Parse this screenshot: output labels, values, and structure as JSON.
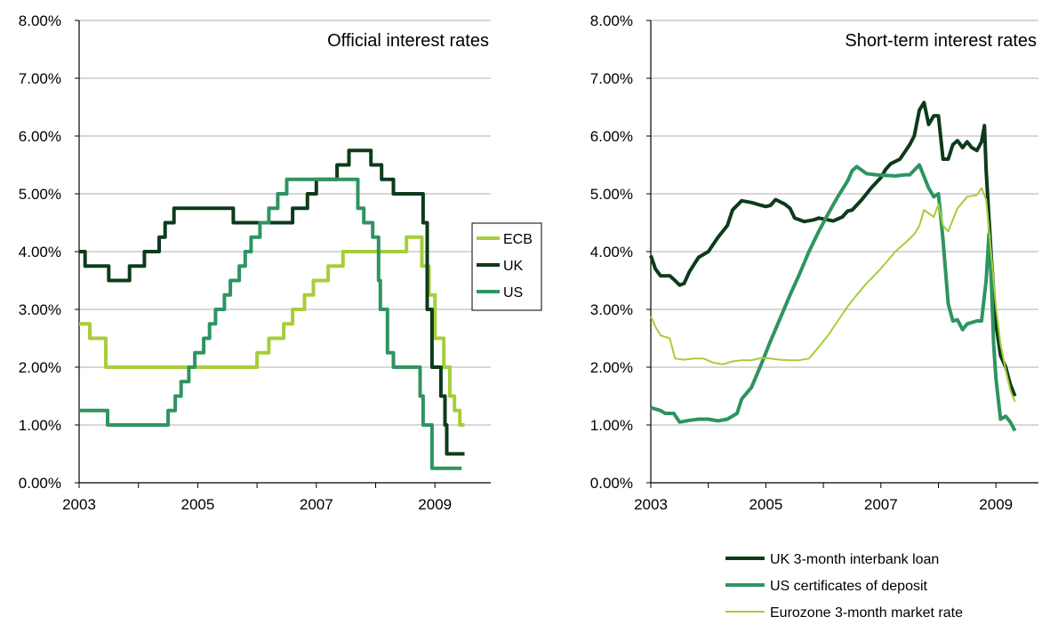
{
  "chart_data": [
    {
      "type": "line",
      "title": "Official interest rates",
      "ylim": [
        0,
        8
      ],
      "xlim": [
        2003,
        2010
      ],
      "x_ticks": [
        "2003",
        "2005",
        "2007",
        "2009"
      ],
      "y_ticks": [
        "0.00%",
        "1.00%",
        "2.00%",
        "3.00%",
        "4.00%",
        "5.00%",
        "6.00%",
        "7.00%",
        "8.00%"
      ],
      "grid": true,
      "legend_placement": "right",
      "series": [
        {
          "name": "ECB",
          "color": "#a6ce39",
          "step": true,
          "points": [
            [
              2003.0,
              2.75
            ],
            [
              2003.18,
              2.5
            ],
            [
              2003.45,
              2.0
            ],
            [
              2006.0,
              2.25
            ],
            [
              2006.2,
              2.5
            ],
            [
              2006.45,
              2.75
            ],
            [
              2006.6,
              3.0
            ],
            [
              2006.8,
              3.25
            ],
            [
              2006.95,
              3.5
            ],
            [
              2007.2,
              3.75
            ],
            [
              2007.45,
              4.0
            ],
            [
              2008.52,
              4.25
            ],
            [
              2008.78,
              3.75
            ],
            [
              2008.9,
              3.25
            ],
            [
              2009.0,
              2.5
            ],
            [
              2009.15,
              2.0
            ],
            [
              2009.25,
              1.5
            ],
            [
              2009.33,
              1.25
            ],
            [
              2009.42,
              1.0
            ],
            [
              2009.5,
              1.0
            ]
          ]
        },
        {
          "name": "UK",
          "color": "#0d3b1a",
          "step": true,
          "points": [
            [
              2003.0,
              4.0
            ],
            [
              2003.1,
              3.75
            ],
            [
              2003.5,
              3.5
            ],
            [
              2003.85,
              3.75
            ],
            [
              2004.1,
              4.0
            ],
            [
              2004.35,
              4.25
            ],
            [
              2004.45,
              4.5
            ],
            [
              2004.6,
              4.75
            ],
            [
              2005.6,
              4.5
            ],
            [
              2006.6,
              4.75
            ],
            [
              2006.85,
              5.0
            ],
            [
              2007.0,
              5.25
            ],
            [
              2007.35,
              5.5
            ],
            [
              2007.55,
              5.75
            ],
            [
              2007.92,
              5.5
            ],
            [
              2008.1,
              5.25
            ],
            [
              2008.3,
              5.0
            ],
            [
              2008.8,
              4.5
            ],
            [
              2008.87,
              3.0
            ],
            [
              2008.95,
              2.0
            ],
            [
              2009.1,
              1.5
            ],
            [
              2009.17,
              1.0
            ],
            [
              2009.2,
              0.5
            ],
            [
              2009.5,
              0.5
            ]
          ]
        },
        {
          "name": "US",
          "color": "#2e9460",
          "step": true,
          "points": [
            [
              2003.0,
              1.25
            ],
            [
              2003.48,
              1.0
            ],
            [
              2004.5,
              1.25
            ],
            [
              2004.62,
              1.5
            ],
            [
              2004.72,
              1.75
            ],
            [
              2004.85,
              2.0
            ],
            [
              2004.95,
              2.25
            ],
            [
              2005.1,
              2.5
            ],
            [
              2005.2,
              2.75
            ],
            [
              2005.3,
              3.0
            ],
            [
              2005.45,
              3.25
            ],
            [
              2005.55,
              3.5
            ],
            [
              2005.7,
              3.75
            ],
            [
              2005.8,
              4.0
            ],
            [
              2005.9,
              4.25
            ],
            [
              2006.05,
              4.5
            ],
            [
              2006.2,
              4.75
            ],
            [
              2006.35,
              5.0
            ],
            [
              2006.5,
              5.25
            ],
            [
              2007.7,
              4.75
            ],
            [
              2007.8,
              4.5
            ],
            [
              2007.95,
              4.25
            ],
            [
              2008.05,
              3.5
            ],
            [
              2008.08,
              3.0
            ],
            [
              2008.2,
              2.25
            ],
            [
              2008.3,
              2.0
            ],
            [
              2008.75,
              1.5
            ],
            [
              2008.8,
              1.0
            ],
            [
              2008.95,
              0.25
            ],
            [
              2009.45,
              0.25
            ]
          ]
        }
      ]
    },
    {
      "type": "line",
      "title": "Short-term interest rates",
      "ylim": [
        0,
        8
      ],
      "xlim": [
        2003,
        2010
      ],
      "x_ticks": [
        "2003",
        "2005",
        "2007",
        "2009"
      ],
      "y_ticks": [
        "0.00%",
        "1.00%",
        "2.00%",
        "3.00%",
        "4.00%",
        "5.00%",
        "6.00%",
        "7.00%",
        "8.00%"
      ],
      "grid": true,
      "legend_placement": "bottom-right",
      "series": [
        {
          "name": "UK 3-month interbank loan",
          "color": "#0d3b1a",
          "width": 4,
          "points": [
            [
              2003.0,
              3.93
            ],
            [
              2003.08,
              3.7
            ],
            [
              2003.17,
              3.58
            ],
            [
              2003.33,
              3.58
            ],
            [
              2003.42,
              3.5
            ],
            [
              2003.5,
              3.42
            ],
            [
              2003.58,
              3.45
            ],
            [
              2003.67,
              3.65
            ],
            [
              2003.83,
              3.9
            ],
            [
              2004.0,
              4.0
            ],
            [
              2004.17,
              4.25
            ],
            [
              2004.33,
              4.45
            ],
            [
              2004.42,
              4.72
            ],
            [
              2004.58,
              4.88
            ],
            [
              2004.75,
              4.85
            ],
            [
              2004.92,
              4.8
            ],
            [
              2005.0,
              4.78
            ],
            [
              2005.08,
              4.8
            ],
            [
              2005.17,
              4.9
            ],
            [
              2005.33,
              4.82
            ],
            [
              2005.42,
              4.75
            ],
            [
              2005.5,
              4.58
            ],
            [
              2005.67,
              4.52
            ],
            [
              2005.83,
              4.55
            ],
            [
              2005.92,
              4.58
            ],
            [
              2006.08,
              4.55
            ],
            [
              2006.17,
              4.53
            ],
            [
              2006.33,
              4.6
            ],
            [
              2006.42,
              4.7
            ],
            [
              2006.5,
              4.72
            ],
            [
              2006.67,
              4.9
            ],
            [
              2006.83,
              5.1
            ],
            [
              2007.0,
              5.28
            ],
            [
              2007.08,
              5.42
            ],
            [
              2007.17,
              5.52
            ],
            [
              2007.33,
              5.6
            ],
            [
              2007.5,
              5.85
            ],
            [
              2007.58,
              6.0
            ],
            [
              2007.67,
              6.45
            ],
            [
              2007.75,
              6.58
            ],
            [
              2007.83,
              6.2
            ],
            [
              2007.92,
              6.35
            ],
            [
              2008.0,
              6.35
            ],
            [
              2008.08,
              5.6
            ],
            [
              2008.17,
              5.6
            ],
            [
              2008.25,
              5.85
            ],
            [
              2008.33,
              5.92
            ],
            [
              2008.42,
              5.8
            ],
            [
              2008.5,
              5.9
            ],
            [
              2008.58,
              5.8
            ],
            [
              2008.67,
              5.75
            ],
            [
              2008.75,
              5.9
            ],
            [
              2008.8,
              6.18
            ],
            [
              2008.83,
              5.4
            ],
            [
              2008.92,
              3.9
            ],
            [
              2009.0,
              2.75
            ],
            [
              2009.08,
              2.2
            ],
            [
              2009.17,
              2.0
            ],
            [
              2009.25,
              1.7
            ],
            [
              2009.33,
              1.5
            ]
          ]
        },
        {
          "name": "US certificates of deposit",
          "color": "#2e9460",
          "width": 4,
          "points": [
            [
              2003.0,
              1.3
            ],
            [
              2003.17,
              1.25
            ],
            [
              2003.25,
              1.2
            ],
            [
              2003.4,
              1.2
            ],
            [
              2003.5,
              1.05
            ],
            [
              2003.67,
              1.08
            ],
            [
              2003.83,
              1.1
            ],
            [
              2004.0,
              1.1
            ],
            [
              2004.17,
              1.07
            ],
            [
              2004.33,
              1.1
            ],
            [
              2004.5,
              1.2
            ],
            [
              2004.58,
              1.45
            ],
            [
              2004.75,
              1.65
            ],
            [
              2004.92,
              2.05
            ],
            [
              2005.08,
              2.45
            ],
            [
              2005.25,
              2.85
            ],
            [
              2005.42,
              3.25
            ],
            [
              2005.58,
              3.6
            ],
            [
              2005.75,
              4.0
            ],
            [
              2005.92,
              4.35
            ],
            [
              2006.08,
              4.65
            ],
            [
              2006.25,
              4.95
            ],
            [
              2006.42,
              5.22
            ],
            [
              2006.5,
              5.4
            ],
            [
              2006.58,
              5.47
            ],
            [
              2006.75,
              5.35
            ],
            [
              2006.92,
              5.33
            ],
            [
              2007.08,
              5.32
            ],
            [
              2007.25,
              5.31
            ],
            [
              2007.42,
              5.33
            ],
            [
              2007.5,
              5.33
            ],
            [
              2007.67,
              5.5
            ],
            [
              2007.83,
              5.1
            ],
            [
              2007.92,
              4.95
            ],
            [
              2008.0,
              5.0
            ],
            [
              2008.08,
              4.2
            ],
            [
              2008.17,
              3.1
            ],
            [
              2008.25,
              2.8
            ],
            [
              2008.33,
              2.82
            ],
            [
              2008.42,
              2.65
            ],
            [
              2008.5,
              2.75
            ],
            [
              2008.67,
              2.8
            ],
            [
              2008.75,
              2.8
            ],
            [
              2008.83,
              3.5
            ],
            [
              2008.88,
              4.3
            ],
            [
              2008.92,
              3.5
            ],
            [
              2008.96,
              2.4
            ],
            [
              2009.0,
              1.8
            ],
            [
              2009.08,
              1.1
            ],
            [
              2009.17,
              1.15
            ],
            [
              2009.25,
              1.05
            ],
            [
              2009.33,
              0.9
            ]
          ]
        },
        {
          "name": "Eurozone 3-month market rate",
          "color": "#a6ce39",
          "width": 2,
          "points": [
            [
              2003.0,
              2.88
            ],
            [
              2003.08,
              2.7
            ],
            [
              2003.17,
              2.55
            ],
            [
              2003.33,
              2.5
            ],
            [
              2003.42,
              2.15
            ],
            [
              2003.58,
              2.13
            ],
            [
              2003.75,
              2.15
            ],
            [
              2003.92,
              2.15
            ],
            [
              2004.08,
              2.08
            ],
            [
              2004.25,
              2.05
            ],
            [
              2004.42,
              2.1
            ],
            [
              2004.58,
              2.12
            ],
            [
              2004.75,
              2.12
            ],
            [
              2004.92,
              2.16
            ],
            [
              2005.08,
              2.15
            ],
            [
              2005.25,
              2.13
            ],
            [
              2005.42,
              2.12
            ],
            [
              2005.58,
              2.12
            ],
            [
              2005.75,
              2.15
            ],
            [
              2005.92,
              2.35
            ],
            [
              2006.08,
              2.55
            ],
            [
              2006.25,
              2.8
            ],
            [
              2006.42,
              3.05
            ],
            [
              2006.58,
              3.25
            ],
            [
              2006.75,
              3.45
            ],
            [
              2006.92,
              3.62
            ],
            [
              2007.08,
              3.8
            ],
            [
              2007.25,
              4.0
            ],
            [
              2007.42,
              4.15
            ],
            [
              2007.58,
              4.3
            ],
            [
              2007.67,
              4.45
            ],
            [
              2007.75,
              4.72
            ],
            [
              2007.92,
              4.6
            ],
            [
              2008.0,
              4.82
            ],
            [
              2008.08,
              4.45
            ],
            [
              2008.17,
              4.35
            ],
            [
              2008.33,
              4.75
            ],
            [
              2008.5,
              4.95
            ],
            [
              2008.67,
              4.98
            ],
            [
              2008.75,
              5.1
            ],
            [
              2008.83,
              4.9
            ],
            [
              2008.92,
              3.95
            ],
            [
              2009.0,
              3.05
            ],
            [
              2009.08,
              2.4
            ],
            [
              2009.17,
              1.95
            ],
            [
              2009.25,
              1.6
            ],
            [
              2009.33,
              1.4
            ]
          ]
        }
      ]
    }
  ]
}
